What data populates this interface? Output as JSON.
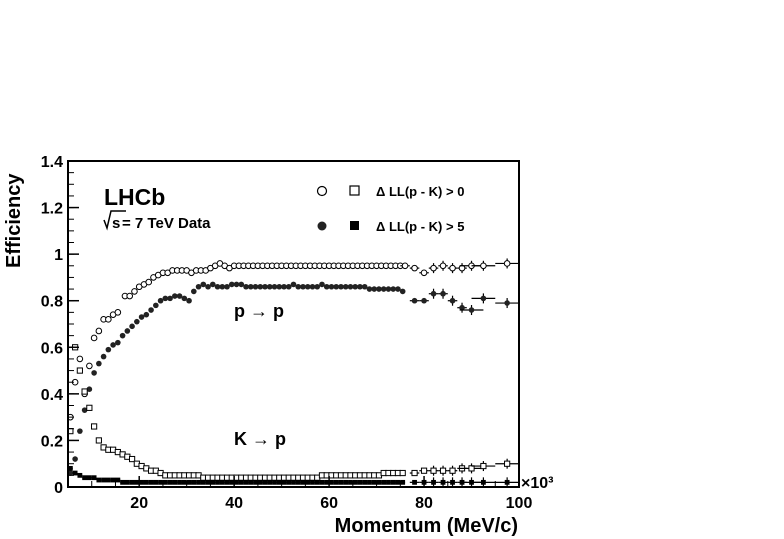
{
  "chart_data": {
    "type": "scatter",
    "title": "",
    "xlabel": "Momentum (MeV/c)",
    "ylabel": "Efficiency",
    "x_multiplier_label": "×10³",
    "xlim": [
      5,
      100
    ],
    "ylim": [
      0,
      1.4
    ],
    "x_ticks": [
      20,
      40,
      60,
      80,
      100
    ],
    "x_tick_labels": [
      "20",
      "40",
      "60",
      "80",
      "100"
    ],
    "y_ticks": [
      0,
      0.2,
      0.4,
      0.6,
      0.8,
      1,
      1.2,
      1.4
    ],
    "y_tick_labels": [
      "0",
      "0.2",
      "0.4",
      "0.6",
      "0.8",
      "1",
      "1.2",
      "1.4"
    ],
    "grid": false,
    "legend_placement": "top-right",
    "legend": [
      {
        "symbols": [
          "open-circle",
          "open-square"
        ],
        "label": "Δ LL(p - K) > 0"
      },
      {
        "symbols": [
          "filled-circle",
          "filled-square"
        ],
        "label": "Δ LL(p - K) > 5"
      }
    ],
    "annotations": {
      "experiment": "LHCb",
      "sqrt_s": "s",
      "energy_suffix": " = 7 TeV Data",
      "p_to_p": "p → p",
      "k_to_p": "K → p"
    },
    "series": [
      {
        "name": "p → p, Δ LL(p - K) > 0",
        "marker": "open-circle",
        "x": [
          5.5,
          6.5,
          7.5,
          8.5,
          9.5,
          10.5,
          11.5,
          12.5,
          13.5,
          14.5,
          15.5,
          17,
          18,
          19,
          20,
          21,
          22,
          23,
          24,
          25,
          26,
          27,
          28,
          29,
          30,
          31,
          32,
          33,
          34,
          35,
          36,
          37,
          38,
          39,
          40,
          41,
          42,
          43,
          44,
          45,
          46,
          47,
          48,
          49,
          50,
          51,
          52,
          53,
          54,
          55,
          56,
          57,
          58,
          59,
          60,
          61,
          62,
          63,
          64,
          65,
          66,
          67,
          68,
          69,
          70,
          71,
          72,
          73,
          74,
          75,
          76,
          78,
          80,
          82,
          84,
          86,
          88,
          90,
          92.5,
          97.5
        ],
        "y": [
          0.3,
          0.45,
          0.55,
          0.4,
          0.52,
          0.64,
          0.67,
          0.72,
          0.72,
          0.74,
          0.75,
          0.82,
          0.82,
          0.84,
          0.86,
          0.87,
          0.88,
          0.9,
          0.91,
          0.92,
          0.92,
          0.93,
          0.93,
          0.93,
          0.93,
          0.92,
          0.93,
          0.93,
          0.93,
          0.94,
          0.95,
          0.96,
          0.95,
          0.94,
          0.95,
          0.95,
          0.95,
          0.95,
          0.95,
          0.95,
          0.95,
          0.95,
          0.95,
          0.95,
          0.95,
          0.95,
          0.95,
          0.95,
          0.95,
          0.95,
          0.95,
          0.95,
          0.95,
          0.95,
          0.95,
          0.95,
          0.95,
          0.95,
          0.95,
          0.95,
          0.95,
          0.95,
          0.95,
          0.95,
          0.95,
          0.95,
          0.95,
          0.95,
          0.95,
          0.95,
          0.95,
          0.94,
          0.92,
          0.94,
          0.95,
          0.94,
          0.94,
          0.95,
          0.95,
          0.96
        ]
      },
      {
        "name": "p → p, Δ LL(p - K) > 5",
        "marker": "filled-circle",
        "x": [
          5.5,
          6.5,
          7.5,
          8.5,
          9.5,
          10.5,
          11.5,
          12.5,
          13.5,
          14.5,
          15.5,
          16.5,
          17.5,
          18.5,
          19.5,
          20.5,
          21.5,
          22.5,
          23.5,
          24.5,
          25.5,
          26.5,
          27.5,
          28.5,
          29.5,
          30.5,
          31.5,
          32.5,
          33.5,
          34.5,
          35.5,
          36.5,
          37.5,
          38.5,
          39.5,
          40.5,
          41.5,
          42.5,
          43.5,
          44.5,
          45.5,
          46.5,
          47.5,
          48.5,
          49.5,
          50.5,
          51.5,
          52.5,
          53.5,
          54.5,
          55.5,
          56.5,
          57.5,
          58.5,
          59.5,
          60.5,
          61.5,
          62.5,
          63.5,
          64.5,
          65.5,
          66.5,
          67.5,
          68.5,
          69.5,
          70.5,
          71.5,
          72.5,
          73.5,
          74.5,
          75.5,
          78,
          80,
          82,
          84,
          86,
          88,
          90,
          92.5,
          97.5
        ],
        "y": [
          0.06,
          0.12,
          0.24,
          0.33,
          0.42,
          0.49,
          0.53,
          0.56,
          0.59,
          0.61,
          0.62,
          0.65,
          0.67,
          0.69,
          0.71,
          0.73,
          0.74,
          0.76,
          0.78,
          0.8,
          0.81,
          0.81,
          0.82,
          0.82,
          0.81,
          0.8,
          0.84,
          0.86,
          0.87,
          0.86,
          0.87,
          0.86,
          0.86,
          0.86,
          0.87,
          0.87,
          0.87,
          0.86,
          0.86,
          0.86,
          0.86,
          0.86,
          0.86,
          0.86,
          0.86,
          0.86,
          0.86,
          0.87,
          0.86,
          0.86,
          0.86,
          0.86,
          0.86,
          0.87,
          0.86,
          0.86,
          0.86,
          0.86,
          0.86,
          0.86,
          0.86,
          0.86,
          0.86,
          0.85,
          0.85,
          0.85,
          0.85,
          0.85,
          0.85,
          0.85,
          0.84,
          0.8,
          0.8,
          0.83,
          0.83,
          0.8,
          0.77,
          0.76,
          0.81,
          0.79
        ]
      },
      {
        "name": "K → p, Δ LL(p - K) > 0",
        "marker": "open-square",
        "x": [
          5.5,
          6.5,
          7.5,
          8.5,
          9.5,
          10.5,
          11.5,
          12.5,
          13.5,
          14.5,
          15.5,
          16.5,
          17.5,
          18.5,
          19.5,
          20.5,
          21.5,
          22.5,
          23.5,
          24.5,
          25.5,
          26.5,
          27.5,
          28.5,
          29.5,
          30.5,
          31.5,
          32.5,
          33.5,
          34.5,
          35.5,
          36.5,
          37.5,
          38.5,
          39.5,
          40.5,
          41.5,
          42.5,
          43.5,
          44.5,
          45.5,
          46.5,
          47.5,
          48.5,
          49.5,
          50.5,
          51.5,
          52.5,
          53.5,
          54.5,
          55.5,
          56.5,
          57.5,
          58.5,
          59.5,
          60.5,
          61.5,
          62.5,
          63.5,
          64.5,
          65.5,
          66.5,
          67.5,
          68.5,
          69.5,
          70.5,
          71.5,
          72.5,
          73.5,
          74.5,
          75.5,
          78,
          80,
          82,
          84,
          86,
          88,
          90,
          92.5,
          97.5
        ],
        "y": [
          0.24,
          0.6,
          0.5,
          0.41,
          0.34,
          0.26,
          0.2,
          0.17,
          0.16,
          0.16,
          0.15,
          0.14,
          0.13,
          0.12,
          0.1,
          0.09,
          0.08,
          0.07,
          0.07,
          0.06,
          0.05,
          0.05,
          0.05,
          0.05,
          0.05,
          0.05,
          0.05,
          0.05,
          0.04,
          0.04,
          0.04,
          0.04,
          0.04,
          0.04,
          0.04,
          0.04,
          0.04,
          0.04,
          0.04,
          0.04,
          0.04,
          0.04,
          0.04,
          0.04,
          0.04,
          0.04,
          0.04,
          0.04,
          0.04,
          0.04,
          0.04,
          0.04,
          0.04,
          0.05,
          0.05,
          0.05,
          0.05,
          0.05,
          0.05,
          0.05,
          0.05,
          0.05,
          0.05,
          0.05,
          0.05,
          0.05,
          0.06,
          0.06,
          0.06,
          0.06,
          0.06,
          0.06,
          0.07,
          0.07,
          0.07,
          0.07,
          0.08,
          0.08,
          0.09,
          0.1
        ]
      },
      {
        "name": "K → p, Δ LL(p - K) > 5",
        "marker": "filled-square",
        "x": [
          5.5,
          6.5,
          7.5,
          8.5,
          9.5,
          10.5,
          11.5,
          12.5,
          13.5,
          14.5,
          15.5,
          16.5,
          17.5,
          18.5,
          19.5,
          20.5,
          21.5,
          22.5,
          23.5,
          24.5,
          25.5,
          26.5,
          27.5,
          28.5,
          29.5,
          30.5,
          31.5,
          32.5,
          33.5,
          34.5,
          35.5,
          36.5,
          37.5,
          38.5,
          39.5,
          40.5,
          41.5,
          42.5,
          43.5,
          44.5,
          45.5,
          46.5,
          47.5,
          48.5,
          49.5,
          50.5,
          51.5,
          52.5,
          53.5,
          54.5,
          55.5,
          56.5,
          57.5,
          58.5,
          59.5,
          60.5,
          61.5,
          62.5,
          63.5,
          64.5,
          65.5,
          66.5,
          67.5,
          68.5,
          69.5,
          70.5,
          71.5,
          72.5,
          73.5,
          74.5,
          75.5,
          78,
          80,
          82,
          84,
          86,
          88,
          90,
          92.5,
          97.5
        ],
        "y": [
          0.08,
          0.06,
          0.05,
          0.04,
          0.04,
          0.04,
          0.03,
          0.03,
          0.03,
          0.03,
          0.03,
          0.02,
          0.02,
          0.02,
          0.02,
          0.02,
          0.02,
          0.02,
          0.02,
          0.02,
          0.02,
          0.02,
          0.02,
          0.02,
          0.02,
          0.02,
          0.02,
          0.02,
          0.02,
          0.02,
          0.02,
          0.02,
          0.02,
          0.02,
          0.02,
          0.02,
          0.02,
          0.02,
          0.02,
          0.02,
          0.02,
          0.02,
          0.02,
          0.02,
          0.02,
          0.02,
          0.02,
          0.02,
          0.02,
          0.02,
          0.02,
          0.02,
          0.02,
          0.02,
          0.02,
          0.02,
          0.02,
          0.02,
          0.02,
          0.02,
          0.02,
          0.02,
          0.02,
          0.02,
          0.02,
          0.02,
          0.02,
          0.02,
          0.02,
          0.02,
          0.02,
          0.02,
          0.02,
          0.02,
          0.02,
          0.02,
          0.02,
          0.02,
          0.02,
          0.02
        ]
      }
    ]
  }
}
